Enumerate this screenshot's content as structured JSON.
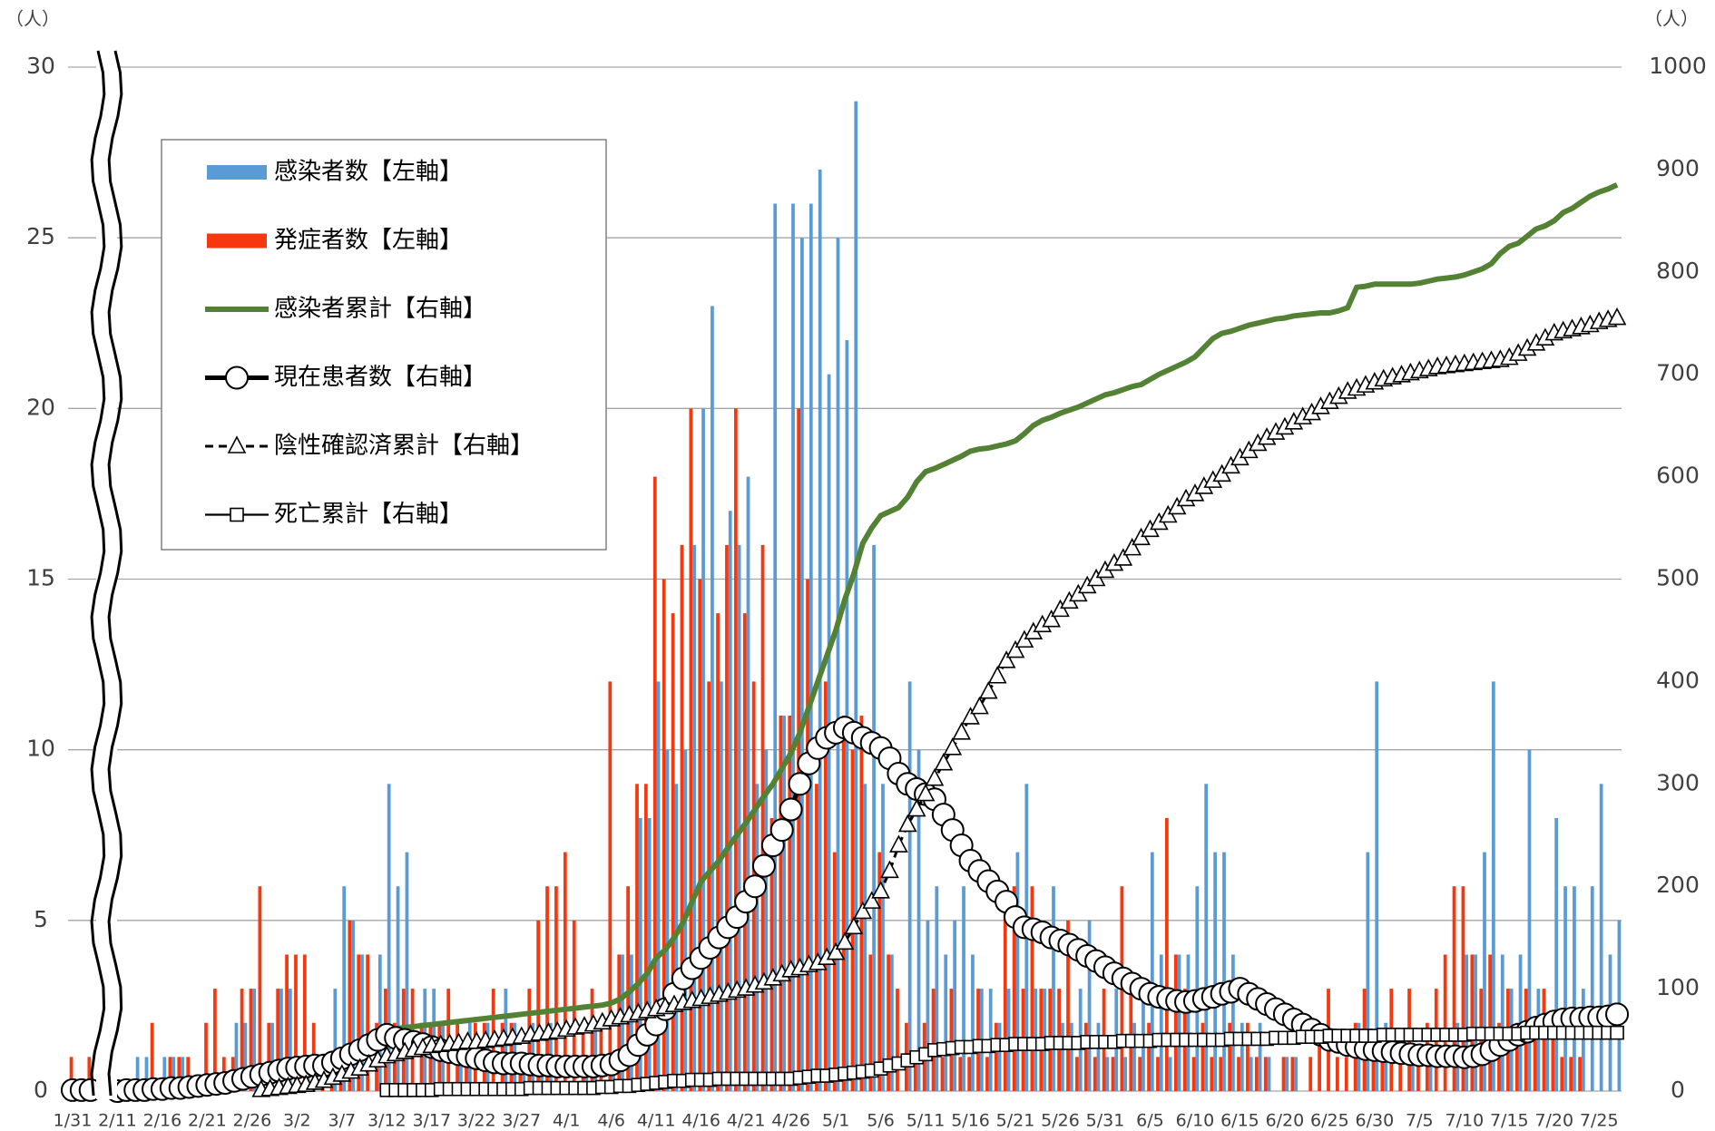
{
  "chart_data": {
    "type": "bar",
    "y_label": "（人）",
    "y2_label": "（人）",
    "ylim": [
      0,
      30
    ],
    "yticks": [
      0,
      5,
      10,
      15,
      20,
      25,
      30
    ],
    "y2lim": [
      0,
      1000
    ],
    "y2ticks": [
      0,
      100,
      200,
      300,
      400,
      500,
      600,
      700,
      800,
      900,
      1000
    ],
    "grid": true,
    "legend": "upper left",
    "categories": [
      "1/31",
      null,
      null,
      null,
      null,
      "2/11",
      null,
      null,
      null,
      null,
      "2/16",
      null,
      null,
      null,
      null,
      "2/21",
      null,
      null,
      null,
      null,
      "2/26",
      null,
      null,
      null,
      null,
      "3/2",
      null,
      null,
      null,
      null,
      "3/7",
      null,
      null,
      null,
      null,
      "3/12",
      null,
      null,
      null,
      null,
      "3/17",
      null,
      null,
      null,
      null,
      "3/22",
      null,
      null,
      null,
      null,
      "3/27",
      null,
      null,
      null,
      null,
      "4/1",
      null,
      null,
      null,
      null,
      "4/6",
      null,
      null,
      null,
      null,
      "4/11",
      null,
      null,
      null,
      null,
      "4/16",
      null,
      null,
      null,
      null,
      "4/21",
      null,
      null,
      null,
      null,
      "4/26",
      null,
      null,
      null,
      null,
      "5/1",
      null,
      null,
      null,
      null,
      "5/6",
      null,
      null,
      null,
      null,
      "5/11",
      null,
      null,
      null,
      null,
      "5/16",
      null,
      null,
      null,
      null,
      "5/21",
      null,
      null,
      null,
      null,
      "5/26",
      null,
      null,
      null,
      null,
      "5/31",
      null,
      null,
      null,
      null,
      "6/5",
      null,
      null,
      null,
      null,
      "6/10",
      null,
      null,
      null,
      null,
      "6/15",
      null,
      null,
      null,
      null,
      "6/20",
      null,
      null,
      null,
      null,
      "6/25",
      null,
      null,
      null,
      null,
      "6/30",
      null,
      null,
      null,
      null,
      "7/5",
      null,
      null,
      null,
      null,
      "7/10",
      null,
      null,
      null,
      null,
      "7/15",
      null,
      null,
      null,
      null,
      "7/20",
      null,
      null,
      null,
      null,
      "7/25",
      null,
      null
    ],
    "series": [
      {
        "name": "感染者数【左軸】",
        "type": "bar",
        "color": "#5b9bd5",
        "values": [
          0,
          0,
          0,
          0,
          0,
          0,
          0,
          1,
          1,
          0,
          1,
          1,
          1,
          0,
          0,
          0,
          0,
          0,
          2,
          2,
          3,
          0,
          2,
          3,
          3,
          0,
          1,
          0,
          0,
          3,
          6,
          5,
          4,
          0,
          4,
          9,
          6,
          7,
          0,
          3,
          3,
          2,
          0,
          1,
          2,
          0,
          2,
          0,
          3,
          2,
          1,
          2,
          1,
          2,
          0,
          0,
          0,
          1,
          2,
          0,
          1,
          4,
          4,
          8,
          8,
          12,
          10,
          9,
          10,
          16,
          20,
          23,
          12,
          17,
          16,
          18,
          9,
          10,
          26,
          11,
          26,
          25,
          26,
          27,
          21,
          25,
          22,
          29,
          9,
          16,
          9,
          4,
          0,
          12,
          10,
          5,
          6,
          4,
          5,
          6,
          4,
          3,
          3,
          2,
          3,
          7,
          9,
          3,
          3,
          6,
          2,
          2,
          3,
          5,
          2,
          1,
          3,
          1,
          2,
          3,
          7,
          4,
          1,
          4,
          4,
          6,
          9,
          7,
          7,
          4,
          2,
          1,
          2,
          1,
          0,
          1,
          1,
          0,
          0,
          0,
          0,
          0,
          0,
          2,
          7,
          12,
          2,
          0,
          0,
          1,
          0,
          1,
          0,
          0,
          2,
          4,
          4,
          7,
          12,
          4,
          3,
          4,
          10,
          3,
          2,
          8,
          6,
          6,
          3,
          6,
          9,
          4,
          5
        ]
      },
      {
        "name": "発症者数【左軸】",
        "type": "bar",
        "color": "#f5380f",
        "values": [
          1,
          0,
          1,
          0,
          0,
          0,
          0,
          0,
          0,
          2,
          0,
          1,
          1,
          1,
          0,
          2,
          3,
          1,
          1,
          3,
          3,
          6,
          2,
          3,
          4,
          4,
          4,
          2,
          1,
          1,
          1,
          5,
          4,
          4,
          2,
          3,
          2,
          3,
          3,
          2,
          2,
          2,
          3,
          2,
          1,
          2,
          2,
          3,
          2,
          2,
          1,
          3,
          5,
          6,
          6,
          7,
          5,
          2,
          3,
          2,
          12,
          4,
          6,
          9,
          9,
          18,
          15,
          14,
          16,
          20,
          15,
          12,
          14,
          16,
          20,
          14,
          12,
          16,
          8,
          11,
          11,
          20,
          15,
          9,
          12,
          7,
          11,
          10,
          11,
          4,
          7,
          4,
          3,
          2,
          1,
          2,
          3,
          1,
          3,
          1,
          1,
          3,
          1,
          2,
          6,
          6,
          3,
          6,
          3,
          3,
          3,
          5,
          1,
          2,
          1,
          3,
          1,
          6,
          3,
          1,
          2,
          1,
          8,
          4,
          3,
          1,
          2,
          1,
          1,
          2,
          1,
          2,
          1,
          1,
          0,
          1,
          1,
          0,
          1,
          2,
          3,
          1,
          1,
          2,
          3,
          1,
          1,
          3,
          1,
          3,
          1,
          2,
          3,
          4,
          6,
          6,
          4,
          3,
          4,
          2,
          3,
          2,
          3,
          2,
          3,
          2,
          1,
          1,
          1,
          0,
          0,
          0,
          0
        ]
      },
      {
        "name": "感染者累計【右軸】",
        "type": "line",
        "axis": "y2",
        "color": "#548235",
        "marker": "none",
        "values": [
          1,
          1,
          1,
          1,
          1,
          1,
          1,
          1,
          2,
          3,
          4,
          5,
          6,
          7,
          8,
          9,
          10,
          11,
          12,
          14,
          17,
          19,
          21,
          24,
          26,
          27,
          28,
          29,
          30,
          32,
          37,
          40,
          44,
          48,
          52,
          60,
          61,
          62,
          63,
          64,
          65,
          66,
          67,
          68,
          69,
          70,
          71,
          72,
          73,
          74,
          75,
          76,
          77,
          78,
          79,
          80,
          81,
          82,
          83,
          84,
          86,
          90,
          97,
          105,
          115,
          130,
          138,
          150,
          165,
          185,
          205,
          215,
          225,
          238,
          250,
          262,
          275,
          288,
          300,
          315,
          330,
          350,
          375,
          400,
          425,
          450,
          480,
          505,
          535,
          550,
          562,
          566,
          570,
          580,
          595,
          605,
          608,
          612,
          616,
          620,
          625,
          627,
          628,
          630,
          632,
          635,
          642,
          650,
          655,
          658,
          662,
          665,
          668,
          672,
          676,
          680,
          682,
          685,
          688,
          690,
          695,
          700,
          704,
          708,
          712,
          717,
          726,
          735,
          740,
          742,
          745,
          748,
          750,
          752,
          754,
          755,
          757,
          758,
          759,
          760,
          760,
          762,
          765,
          785,
          786,
          788,
          788,
          788,
          788,
          788,
          789,
          791,
          793,
          794,
          795,
          797,
          800,
          803,
          808,
          818,
          825,
          828,
          835,
          842,
          845,
          850,
          858,
          862,
          868,
          874,
          878,
          881,
          885
        ]
      },
      {
        "name": "現在患者数【右軸】",
        "type": "line",
        "axis": "y2",
        "color": "#000000",
        "marker": "circle",
        "values": [
          1,
          1,
          1,
          null,
          null,
          0,
          1,
          1,
          1,
          2,
          2,
          3,
          3,
          4,
          5,
          6,
          7,
          8,
          10,
          12,
          14,
          16,
          18,
          20,
          22,
          23,
          24,
          25,
          25,
          28,
          32,
          36,
          40,
          45,
          50,
          55,
          52,
          50,
          48,
          46,
          43,
          40,
          38,
          36,
          34,
          32,
          30,
          28,
          27,
          27,
          27,
          26,
          25,
          25,
          24,
          24,
          24,
          24,
          24,
          25,
          26,
          30,
          35,
          45,
          55,
          65,
          80,
          95,
          110,
          120,
          130,
          140,
          150,
          160,
          170,
          185,
          200,
          220,
          240,
          255,
          275,
          300,
          320,
          335,
          345,
          350,
          355,
          350,
          345,
          340,
          335,
          325,
          310,
          300,
          295,
          290,
          285,
          270,
          255,
          240,
          225,
          215,
          205,
          195,
          185,
          170,
          160,
          158,
          155,
          150,
          147,
          143,
          138,
          132,
          127,
          121,
          115,
          110,
          105,
          100,
          95,
          92,
          90,
          88,
          87,
          88,
          90,
          92,
          95,
          97,
          100,
          95,
          90,
          85,
          80,
          75,
          70,
          65,
          60,
          55,
          50,
          48,
          45,
          43,
          41,
          40,
          39,
          38,
          37,
          36,
          35,
          35,
          34,
          34,
          34,
          33,
          34,
          36,
          40,
          45,
          50,
          55,
          58,
          62,
          65,
          68,
          70,
          71,
          71,
          72,
          72,
          73,
          75
        ]
      },
      {
        "name": "陰性確認済累計【右軸】",
        "type": "line",
        "axis": "y2",
        "color": "#000000",
        "marker": "triangle",
        "dashed": true,
        "values": [
          null,
          null,
          null,
          null,
          null,
          null,
          null,
          null,
          null,
          null,
          null,
          null,
          null,
          null,
          null,
          null,
          null,
          null,
          null,
          null,
          null,
          1,
          2,
          3,
          4,
          5,
          6,
          8,
          10,
          13,
          16,
          19,
          22,
          26,
          30,
          34,
          36,
          38,
          40,
          42,
          44,
          45,
          46,
          47,
          48,
          48,
          49,
          50,
          51,
          52,
          53,
          55,
          56,
          57,
          58,
          60,
          62,
          63,
          65,
          67,
          70,
          72,
          74,
          76,
          78,
          80,
          82,
          84,
          86,
          88,
          90,
          92,
          94,
          96,
          98,
          100,
          103,
          106,
          110,
          114,
          118,
          120,
          123,
          125,
          130,
          135,
          145,
          160,
          175,
          185,
          195,
          215,
          240,
          260,
          275,
          290,
          305,
          320,
          335,
          350,
          365,
          375,
          390,
          405,
          420,
          430,
          440,
          448,
          455,
          460,
          470,
          478,
          485,
          493,
          500,
          508,
          515,
          520,
          530,
          540,
          548,
          555,
          562,
          570,
          578,
          583,
          590,
          596,
          602,
          610,
          618,
          625,
          632,
          638,
          643,
          648,
          653,
          658,
          662,
          668,
          673,
          678,
          683,
          686,
          689,
          692,
          695,
          697,
          699,
          701,
          703,
          705,
          707,
          708,
          709,
          710,
          711,
          712,
          713,
          714,
          716,
          720,
          725,
          730,
          735,
          740,
          742,
          744,
          746,
          748,
          751,
          753,
          755
        ]
      },
      {
        "name": "死亡累計【右軸】",
        "type": "line",
        "axis": "y2",
        "color": "#000000",
        "marker": "square",
        "values": [
          null,
          null,
          null,
          null,
          null,
          null,
          null,
          null,
          null,
          null,
          null,
          null,
          null,
          null,
          null,
          null,
          null,
          null,
          null,
          null,
          null,
          null,
          null,
          null,
          null,
          null,
          null,
          null,
          null,
          null,
          null,
          null,
          null,
          null,
          null,
          1,
          1,
          1,
          1,
          1,
          1,
          2,
          2,
          2,
          2,
          2,
          2,
          2,
          2,
          2,
          2,
          3,
          3,
          3,
          3,
          3,
          3,
          3,
          3,
          4,
          4,
          5,
          5,
          6,
          7,
          8,
          9,
          10,
          10,
          11,
          11,
          11,
          12,
          12,
          12,
          12,
          12,
          12,
          12,
          12,
          12,
          13,
          14,
          15,
          15,
          16,
          17,
          18,
          19,
          20,
          22,
          25,
          27,
          30,
          33,
          36,
          40,
          41,
          42,
          43,
          43,
          44,
          44,
          45,
          45,
          46,
          46,
          46,
          46,
          47,
          47,
          47,
          47,
          48,
          48,
          48,
          48,
          49,
          49,
          49,
          49,
          50,
          50,
          50,
          50,
          50,
          50,
          50,
          50,
          51,
          51,
          51,
          51,
          51,
          52,
          52,
          52,
          53,
          53,
          53,
          54,
          54,
          54,
          54,
          54,
          54,
          55,
          55,
          55,
          55,
          55,
          55,
          55,
          55,
          55,
          55,
          56,
          56,
          56,
          56,
          56,
          56,
          57,
          57,
          57,
          57,
          57,
          57,
          57,
          57,
          57,
          57,
          57
        ]
      }
    ]
  }
}
